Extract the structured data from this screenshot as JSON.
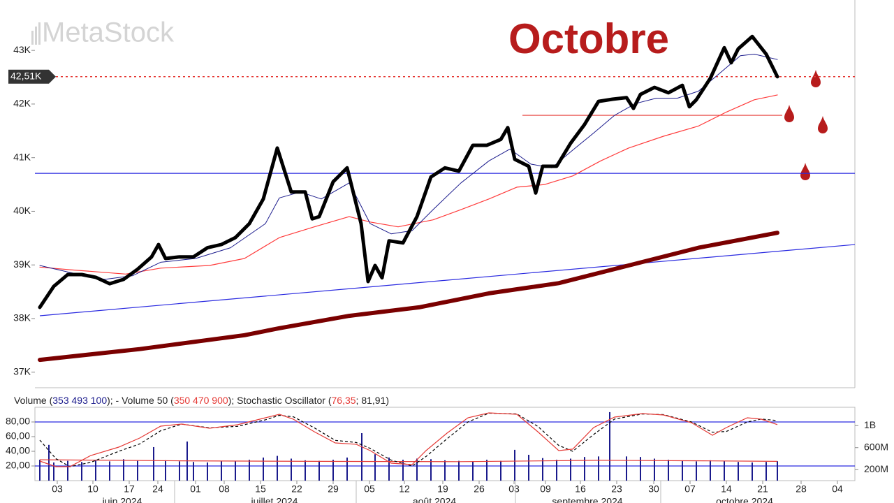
{
  "chart_data": [
    {
      "type": "line",
      "watermark": "MetaStock",
      "annotation": "Octobre",
      "xlim": [
        -0.7,
        116.7
      ],
      "ylim": [
        36710,
        43940
      ],
      "yticks": [
        {
          "value": 37000,
          "label": "37K"
        },
        {
          "value": 38000,
          "label": "38K"
        },
        {
          "value": 39000,
          "label": "39K"
        },
        {
          "value": 40000,
          "label": "40K"
        },
        {
          "value": 41000,
          "label": "41K"
        },
        {
          "value": 42000,
          "label": "42K"
        },
        {
          "value": 43000,
          "label": "43K"
        }
      ],
      "last_price": {
        "value": 42510,
        "label": "42,51K",
        "color": "#e53935"
      },
      "lines": [
        {
          "color": "#2a2ae0",
          "x": [
            0,
            116.7
          ],
          "y": [
            38052,
            39380
          ]
        },
        {
          "color": "#2a2ae0",
          "x": [
            -0.7,
            116.7
          ],
          "y": [
            40708,
            40708
          ]
        },
        {
          "color": "#e53935",
          "x": [
            69.1,
            106.3
          ],
          "y": [
            41790,
            41790
          ]
        }
      ],
      "series": [
        {
          "color": "#7a0000",
          "width": 6,
          "x": [
            0,
            14.3,
            29.3,
            34.3,
            44.3,
            54.3,
            64.3,
            74.3,
            84.3,
            94.3,
            105.6
          ],
          "values": [
            37230,
            37430,
            37690,
            37820,
            38050,
            38210,
            38470,
            38660,
            38990,
            39320,
            39600
          ]
        },
        {
          "color": "#ff3b3b",
          "width": 1.2,
          "x": [
            0,
            4.3,
            12.3,
            17.3,
            24.3,
            29.3,
            34.3,
            39.3,
            44.3,
            47.3,
            51.3,
            56.3,
            60.3,
            64.3,
            68.3,
            72.3,
            76.3,
            80.3,
            84.3,
            89.3,
            94.3,
            98.3,
            102.3,
            105.6
          ],
          "values": [
            38960,
            38910,
            38830,
            38940,
            38990,
            39120,
            39510,
            39710,
            39900,
            39800,
            39710,
            39840,
            40030,
            40230,
            40450,
            40500,
            40660,
            40940,
            41180,
            41400,
            41590,
            41850,
            42080,
            42170
          ]
        },
        {
          "color": "#1a1a8c",
          "width": 1,
          "x": [
            0,
            4.3,
            9.3,
            13.3,
            17.3,
            22.3,
            27.3,
            32.3,
            34.3,
            37.3,
            40.3,
            44.3,
            47.3,
            50.3,
            53.3,
            56.3,
            60.3,
            64.3,
            67.3,
            70.3,
            73.3,
            76.3,
            79.3,
            82.3,
            85.3,
            88.3,
            91.3,
            94.3,
            97.3,
            100.3,
            102.3,
            105.6
          ],
          "values": [
            38990,
            38860,
            38730,
            38800,
            39050,
            39120,
            39320,
            39770,
            40250,
            40360,
            40230,
            40530,
            39770,
            39580,
            39640,
            40030,
            40530,
            40940,
            41160,
            40880,
            40810,
            41140,
            41460,
            41790,
            42010,
            42110,
            42110,
            42240,
            42570,
            42900,
            42930,
            42830
          ]
        },
        {
          "color": "#000000",
          "width": 5,
          "x": [
            0,
            2,
            4,
            6,
            8,
            10,
            12,
            14,
            16,
            17,
            18,
            20,
            22,
            24,
            26,
            28,
            30,
            32,
            34,
            36,
            38,
            39,
            40,
            42,
            44,
            46,
            47,
            48,
            49,
            50,
            52,
            54,
            56,
            58,
            60,
            62,
            64,
            66,
            67,
            68,
            70,
            71,
            72,
            74,
            76,
            78,
            80,
            82,
            84,
            85,
            86,
            88,
            90,
            92,
            93,
            94,
            96,
            98,
            99,
            100,
            102,
            104,
            105.6
          ],
          "values": [
            38210,
            38600,
            38820,
            38820,
            38770,
            38650,
            38730,
            38920,
            39150,
            39380,
            39120,
            39150,
            39150,
            39320,
            39380,
            39510,
            39770,
            40230,
            41180,
            40360,
            40360,
            39860,
            39900,
            40550,
            40810,
            39770,
            38690,
            38990,
            38760,
            39450,
            39410,
            39900,
            40640,
            40810,
            40750,
            41230,
            41230,
            41340,
            41560,
            40970,
            40840,
            40340,
            40840,
            40840,
            41270,
            41620,
            42050,
            42090,
            42120,
            41920,
            42180,
            42310,
            42210,
            42350,
            41950,
            42080,
            42480,
            43050,
            42770,
            43030,
            43260,
            42930,
            42510
          ]
        }
      ]
    },
    {
      "type": "combo",
      "legend": [
        {
          "text": "Volume (",
          "color": "#222222"
        },
        {
          "text": "353 493 100",
          "color": "#1a1a8c"
        },
        {
          "text": "); - Volume 50 (",
          "color": "#222222"
        },
        {
          "text": "350 470 900",
          "color": "#e53935"
        },
        {
          "text": "); Stochastic Oscillator (",
          "color": "#222222"
        },
        {
          "text": "76,35",
          "color": "#e53935"
        },
        {
          "text": "; 81,91",
          "color": "#222222"
        },
        {
          "text": ")",
          "color": "#222222"
        }
      ],
      "xlim": [
        -0.7,
        116.7
      ],
      "ylim": [
        0,
        100
      ],
      "yticks": [
        {
          "value": 20,
          "label": "20,00"
        },
        {
          "value": 40,
          "label": "40,00"
        },
        {
          "value": 60,
          "label": "60,00"
        },
        {
          "value": 80,
          "label": "80,00"
        }
      ],
      "y2lim": [
        0,
        1333000000
      ],
      "y2ticks": [
        {
          "value": 200000000,
          "label": "200M"
        },
        {
          "value": 600000000,
          "label": "600M"
        },
        {
          "value": 1000000000,
          "label": "1B"
        }
      ],
      "hlines": [
        {
          "value": 80,
          "color": "#2a2ae0"
        },
        {
          "value": 20,
          "color": "#2a2ae0"
        }
      ],
      "xticks": [
        {
          "value": 2.5,
          "label": "03"
        },
        {
          "value": 7.6,
          "label": "10"
        },
        {
          "value": 12.8,
          "label": "17"
        },
        {
          "value": 16.9,
          "label": "24"
        },
        {
          "value": 22.3,
          "label": "01"
        },
        {
          "value": 26.4,
          "label": "08"
        },
        {
          "value": 31.6,
          "label": "15"
        },
        {
          "value": 36.8,
          "label": "22"
        },
        {
          "value": 42,
          "label": "29"
        },
        {
          "value": 47.2,
          "label": "05"
        },
        {
          "value": 52.2,
          "label": "12"
        },
        {
          "value": 57.7,
          "label": "19"
        },
        {
          "value": 62.9,
          "label": "26"
        },
        {
          "value": 67.9,
          "label": "03"
        },
        {
          "value": 72.4,
          "label": "09"
        },
        {
          "value": 77.4,
          "label": "16"
        },
        {
          "value": 82.6,
          "label": "23"
        },
        {
          "value": 87.9,
          "label": "30"
        },
        {
          "value": 93.1,
          "label": "07"
        },
        {
          "value": 98.3,
          "label": "14"
        },
        {
          "value": 103.5,
          "label": "21"
        },
        {
          "value": 109,
          "label": "28"
        },
        {
          "value": 114.2,
          "label": "04"
        }
      ],
      "months": [
        {
          "label": "juin 2024",
          "x": 11.8
        },
        {
          "label": "juillet 2024",
          "x": 33.6
        },
        {
          "label": "août 2024",
          "x": 56.5
        },
        {
          "label": "septembre 2024",
          "x": 78.4
        },
        {
          "label": "octobre 2024",
          "x": 100.9
        }
      ],
      "month_breaks": [
        19.3,
        45.3,
        68.1,
        88.9
      ],
      "series": [
        {
          "type": "bar",
          "axis": "y2",
          "color": "#1a1a8c",
          "x": [
            0,
            1.3,
            2,
            4,
            6,
            8,
            10,
            12,
            14,
            16.3,
            18,
            20,
            21.1,
            22,
            24,
            26,
            28,
            30,
            32,
            34,
            36,
            38,
            40,
            42,
            44,
            46.1,
            48,
            50,
            52,
            54,
            56,
            58,
            60,
            62,
            64,
            66,
            68,
            70,
            72,
            74,
            76,
            78,
            80,
            81.6,
            84,
            86,
            88,
            90,
            92,
            94,
            96,
            98,
            100,
            102,
            104,
            105.6
          ],
          "values": [
            380000000,
            650000000,
            330000000,
            360000000,
            340000000,
            370000000,
            350000000,
            390000000,
            360000000,
            610000000,
            370000000,
            350000000,
            711000000,
            340000000,
            330000000,
            360000000,
            350000000,
            380000000,
            420000000,
            450000000,
            400000000,
            370000000,
            360000000,
            380000000,
            420000000,
            863000000,
            480000000,
            420000000,
            380000000,
            400000000,
            390000000,
            370000000,
            360000000,
            350000000,
            380000000,
            360000000,
            560000000,
            470000000,
            410000000,
            380000000,
            400000000,
            430000000,
            440000000,
            1245000000,
            440000000,
            430000000,
            400000000,
            380000000,
            360000000,
            350000000,
            370000000,
            360000000,
            340000000,
            330000000,
            340000000,
            353493100
          ]
        },
        {
          "type": "line",
          "axis": "y2",
          "color": "#e53935",
          "x": [
            0,
            20,
            40,
            60,
            80,
            95,
            105.6
          ],
          "values": [
            380000000,
            360000000,
            350000000,
            345000000,
            370000000,
            360000000,
            350470900
          ]
        },
        {
          "type": "line",
          "color": "#000000",
          "dash": "4 3",
          "x": [
            0,
            2.3,
            4.3,
            7.3,
            11.3,
            14.3,
            17.3,
            20.3,
            24.3,
            28.3,
            32.3,
            34.3,
            36.3,
            39.3,
            42.3,
            45.3,
            47.3,
            50.3,
            53.3,
            55.3,
            58.3,
            61.3,
            64.3,
            68.3,
            71.3,
            74.3,
            76.3,
            79.3,
            82.3,
            86.3,
            89.3,
            93.3,
            96.3,
            98.3,
            101.3,
            103.3,
            105.6
          ],
          "values": [
            55.2,
            30,
            19,
            25,
            40,
            50,
            68,
            77,
            72,
            74,
            83,
            89,
            87,
            72,
            55,
            52,
            44,
            28,
            20,
            33,
            57,
            80,
            92,
            91,
            74,
            48,
            40,
            63,
            84,
            91,
            90,
            80,
            66,
            67,
            80,
            84,
            81.91
          ]
        },
        {
          "type": "line",
          "color": "#e53935",
          "x": [
            0,
            2.3,
            4.3,
            7.3,
            11.3,
            14.3,
            17.3,
            20.3,
            24.3,
            28.3,
            32.3,
            34.3,
            36.3,
            39.3,
            42.3,
            45.3,
            47.3,
            50.3,
            53.3,
            55.3,
            58.3,
            61.3,
            64.3,
            68.3,
            71.3,
            74.3,
            76.3,
            79.3,
            82.3,
            86.3,
            89.3,
            93.3,
            96.3,
            98.3,
            101.3,
            103.3,
            105.6
          ],
          "values": [
            26.7,
            19,
            19,
            34.3,
            45.7,
            58.1,
            74.3,
            77.1,
            71.4,
            76.2,
            85.7,
            90.5,
            83.8,
            66.7,
            51.4,
            49.5,
            41,
            23.8,
            21.9,
            41,
            64.8,
            85.7,
            92.4,
            90.5,
            66.7,
            41,
            43,
            72.4,
            86.7,
            91.4,
            89.5,
            79,
            61.9,
            72.4,
            85.7,
            83.8,
            76.35
          ]
        }
      ]
    }
  ]
}
